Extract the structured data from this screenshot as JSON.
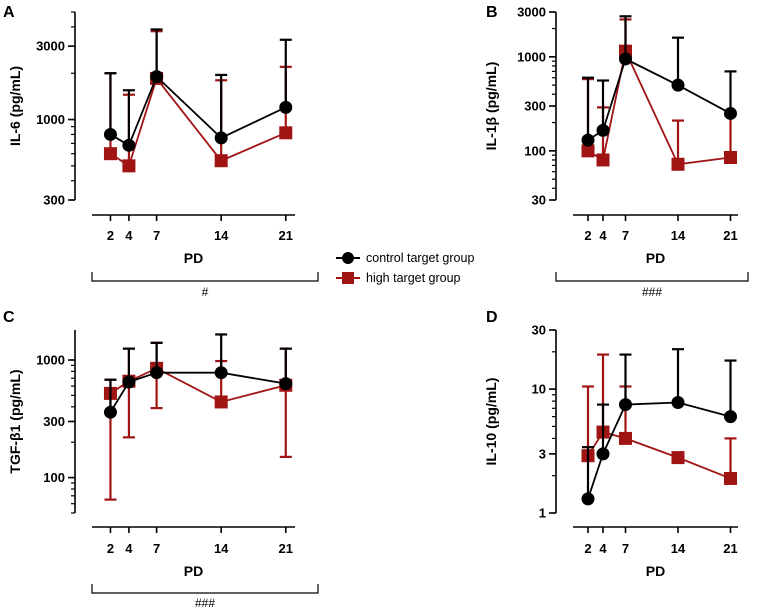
{
  "colors": {
    "control": "#000000",
    "high": "#a01414"
  },
  "legend": {
    "control_label": "control target group",
    "high_label": "high target group"
  },
  "chart_data": [
    {
      "type": "line",
      "panel": "A",
      "ylabel": "IL-6 (pg/mL)",
      "xlabel": "PD",
      "yscale": "log",
      "ylim": [
        300,
        5000
      ],
      "yticks": [
        300,
        1000,
        3000
      ],
      "ytick_labels": [
        "300",
        "1000",
        "3000"
      ],
      "x": [
        2,
        4,
        7,
        14,
        21
      ],
      "xtick_labels": [
        "2",
        "4",
        "7",
        "14",
        "21"
      ],
      "significance": "#",
      "series": [
        {
          "name": "control target group",
          "values": [
            800,
            680,
            1900,
            760,
            1200
          ],
          "err_upper": [
            2000,
            1550,
            3850,
            1950,
            3300
          ]
        },
        {
          "name": "high target group",
          "values": [
            600,
            500,
            1850,
            540,
            820
          ],
          "err_upper": [
            2000,
            1450,
            3750,
            1800,
            2200
          ]
        }
      ]
    },
    {
      "type": "line",
      "panel": "B",
      "ylabel": "IL-1β (pg/mL)",
      "xlabel": "PD",
      "yscale": "log",
      "ylim": [
        30,
        3000
      ],
      "yticks": [
        30,
        100,
        300,
        1000,
        3000
      ],
      "ytick_labels": [
        "30",
        "100",
        "300",
        "1000",
        "3000"
      ],
      "x": [
        2,
        4,
        7,
        14,
        21
      ],
      "xtick_labels": [
        "2",
        "4",
        "7",
        "14",
        "21"
      ],
      "significance": "###",
      "series": [
        {
          "name": "control target group",
          "values": [
            130,
            165,
            950,
            500,
            250
          ],
          "err_upper": [
            600,
            560,
            2700,
            1600,
            700
          ]
        },
        {
          "name": "high target group",
          "values": [
            100,
            80,
            1150,
            72,
            85
          ],
          "err_upper": [
            580,
            290,
            2500,
            210,
            250
          ]
        }
      ]
    },
    {
      "type": "line",
      "panel": "C",
      "ylabel": "TGF-β1 (pg/mL)",
      "xlabel": "PD",
      "yscale": "log",
      "ylim": [
        50,
        1800
      ],
      "yticks": [
        100,
        300,
        1000
      ],
      "ytick_labels": [
        "100",
        "300",
        "1000"
      ],
      "x": [
        2,
        4,
        7,
        14,
        21
      ],
      "xtick_labels": [
        "2",
        "4",
        "7",
        "14",
        "21"
      ],
      "significance": "###",
      "series": [
        {
          "name": "control target group",
          "values": [
            360,
            650,
            780,
            780,
            630
          ],
          "err_upper": [
            680,
            1250,
            1400,
            1650,
            1250
          ],
          "err_lower": [
            360,
            650,
            780,
            780,
            630
          ]
        },
        {
          "name": "high target group",
          "values": [
            520,
            660,
            850,
            440,
            610
          ],
          "err_upper": [
            680,
            1250,
            1400,
            980,
            1250
          ],
          "err_lower": [
            65,
            220,
            390,
            440,
            150
          ]
        }
      ]
    },
    {
      "type": "line",
      "panel": "D",
      "ylabel": "IL-10 (pg/mL)",
      "xlabel": "PD",
      "yscale": "log",
      "ylim": [
        1,
        30
      ],
      "yticks": [
        1,
        3,
        10,
        30
      ],
      "ytick_labels": [
        "1",
        "3",
        "10",
        "30"
      ],
      "x": [
        2,
        4,
        7,
        14,
        21
      ],
      "xtick_labels": [
        "2",
        "4",
        "7",
        "14",
        "21"
      ],
      "significance": "",
      "series": [
        {
          "name": "control target group",
          "values": [
            1.3,
            3.0,
            7.5,
            7.8,
            6.0
          ],
          "err_upper": [
            3.4,
            7.5,
            19.0,
            21.0,
            17.0
          ]
        },
        {
          "name": "high target group",
          "values": [
            2.9,
            4.5,
            4.0,
            2.8,
            1.9
          ],
          "err_upper": [
            10.5,
            19.0,
            10.5,
            2.8,
            4.0
          ]
        }
      ]
    }
  ]
}
